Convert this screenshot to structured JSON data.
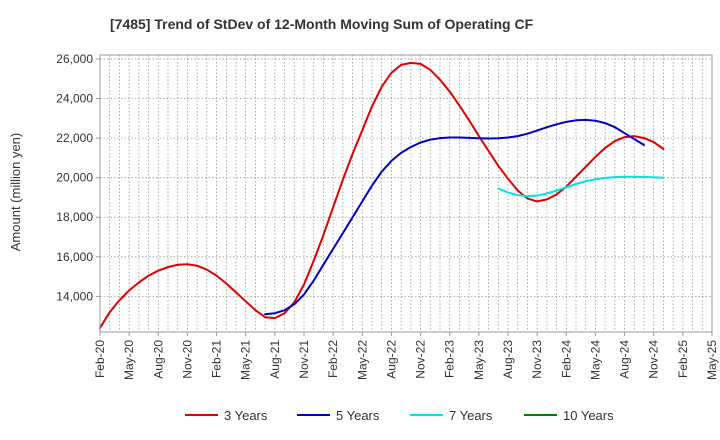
{
  "chart_data": {
    "type": "line",
    "title": "[7485]  Trend of StDev of 12-Month Moving Sum of Operating CF",
    "xlabel": "",
    "ylabel": "Amount (million yen)",
    "ylim": [
      12200,
      26200
    ],
    "xlim": [
      "2020-02",
      "2025-05"
    ],
    "yticks": [
      14000,
      16000,
      18000,
      20000,
      22000,
      24000,
      26000
    ],
    "ytick_labels": [
      "14,000",
      "16,000",
      "18,000",
      "20,000",
      "22,000",
      "24,000",
      "26,000"
    ],
    "xtick_labels": [
      "Feb-20",
      "May-20",
      "Aug-20",
      "Nov-20",
      "Feb-21",
      "May-21",
      "Aug-21",
      "Nov-21",
      "Feb-22",
      "May-22",
      "Aug-22",
      "Nov-22",
      "Feb-23",
      "May-23",
      "Aug-23",
      "Nov-23",
      "Feb-24",
      "May-24",
      "Aug-24",
      "Nov-24",
      "Feb-25",
      "May-25"
    ],
    "grid": true,
    "legend_position": "bottom",
    "series": [
      {
        "name": "3 Years",
        "color": "#e00000",
        "points": [
          [
            "2020-02",
            12400
          ],
          [
            "2020-03",
            13200
          ],
          [
            "2020-04",
            13800
          ],
          [
            "2020-05",
            14300
          ],
          [
            "2020-06",
            14700
          ],
          [
            "2020-07",
            15050
          ],
          [
            "2020-08",
            15300
          ],
          [
            "2020-09",
            15480
          ],
          [
            "2020-10",
            15600
          ],
          [
            "2020-11",
            15620
          ],
          [
            "2020-12",
            15550
          ],
          [
            "2021-01",
            15350
          ],
          [
            "2021-02",
            15050
          ],
          [
            "2021-03",
            14650
          ],
          [
            "2021-04",
            14200
          ],
          [
            "2021-05",
            13750
          ],
          [
            "2021-06",
            13300
          ],
          [
            "2021-07",
            12950
          ],
          [
            "2021-08",
            12900
          ],
          [
            "2021-09",
            13150
          ],
          [
            "2021-10",
            13700
          ],
          [
            "2021-11",
            14600
          ],
          [
            "2021-12",
            15800
          ],
          [
            "2022-01",
            17100
          ],
          [
            "2022-02",
            18500
          ],
          [
            "2022-03",
            19900
          ],
          [
            "2022-04",
            21200
          ],
          [
            "2022-05",
            22400
          ],
          [
            "2022-06",
            23600
          ],
          [
            "2022-07",
            24600
          ],
          [
            "2022-08",
            25300
          ],
          [
            "2022-09",
            25700
          ],
          [
            "2022-10",
            25800
          ],
          [
            "2022-11",
            25750
          ],
          [
            "2022-12",
            25450
          ],
          [
            "2023-01",
            24950
          ],
          [
            "2023-02",
            24350
          ],
          [
            "2023-03",
            23650
          ],
          [
            "2023-04",
            22900
          ],
          [
            "2023-05",
            22100
          ],
          [
            "2023-06",
            21350
          ],
          [
            "2023-07",
            20600
          ],
          [
            "2023-08",
            19950
          ],
          [
            "2023-09",
            19350
          ],
          [
            "2023-10",
            18950
          ],
          [
            "2023-11",
            18800
          ],
          [
            "2023-12",
            18900
          ],
          [
            "2024-01",
            19150
          ],
          [
            "2024-02",
            19550
          ],
          [
            "2024-03",
            20050
          ],
          [
            "2024-04",
            20550
          ],
          [
            "2024-05",
            21050
          ],
          [
            "2024-06",
            21500
          ],
          [
            "2024-07",
            21850
          ],
          [
            "2024-08",
            22050
          ],
          [
            "2024-09",
            22100
          ],
          [
            "2024-10",
            22000
          ],
          [
            "2024-11",
            21800
          ],
          [
            "2024-12",
            21450
          ]
        ]
      },
      {
        "name": "5 Years",
        "color": "#0000cc",
        "points": [
          [
            "2021-07",
            13100
          ],
          [
            "2021-08",
            13150
          ],
          [
            "2021-09",
            13300
          ],
          [
            "2021-10",
            13600
          ],
          [
            "2021-11",
            14100
          ],
          [
            "2021-12",
            14800
          ],
          [
            "2022-01",
            15600
          ],
          [
            "2022-02",
            16400
          ],
          [
            "2022-03",
            17200
          ],
          [
            "2022-04",
            18000
          ],
          [
            "2022-05",
            18800
          ],
          [
            "2022-06",
            19600
          ],
          [
            "2022-07",
            20300
          ],
          [
            "2022-08",
            20850
          ],
          [
            "2022-09",
            21250
          ],
          [
            "2022-10",
            21550
          ],
          [
            "2022-11",
            21780
          ],
          [
            "2022-12",
            21920
          ],
          [
            "2023-01",
            22000
          ],
          [
            "2023-02",
            22030
          ],
          [
            "2023-03",
            22030
          ],
          [
            "2023-04",
            22010
          ],
          [
            "2023-05",
            21990
          ],
          [
            "2023-06",
            21980
          ],
          [
            "2023-07",
            21990
          ],
          [
            "2023-08",
            22030
          ],
          [
            "2023-09",
            22100
          ],
          [
            "2023-10",
            22220
          ],
          [
            "2023-11",
            22380
          ],
          [
            "2023-12",
            22550
          ],
          [
            "2024-01",
            22700
          ],
          [
            "2024-02",
            22820
          ],
          [
            "2024-03",
            22900
          ],
          [
            "2024-04",
            22920
          ],
          [
            "2024-05",
            22880
          ],
          [
            "2024-06",
            22760
          ],
          [
            "2024-07",
            22550
          ],
          [
            "2024-08",
            22250
          ],
          [
            "2024-09",
            21950
          ],
          [
            "2024-10",
            21650
          ]
        ]
      },
      {
        "name": "7 Years",
        "color": "#00e5e5",
        "points": [
          [
            "2023-07",
            19450
          ],
          [
            "2023-08",
            19250
          ],
          [
            "2023-09",
            19120
          ],
          [
            "2023-10",
            19070
          ],
          [
            "2023-11",
            19100
          ],
          [
            "2023-12",
            19200
          ],
          [
            "2024-01",
            19350
          ],
          [
            "2024-02",
            19520
          ],
          [
            "2024-03",
            19680
          ],
          [
            "2024-04",
            19820
          ],
          [
            "2024-05",
            19920
          ],
          [
            "2024-06",
            19990
          ],
          [
            "2024-07",
            20030
          ],
          [
            "2024-08",
            20050
          ],
          [
            "2024-09",
            20050
          ],
          [
            "2024-10",
            20040
          ],
          [
            "2024-11",
            20020
          ],
          [
            "2024-12",
            20000
          ]
        ]
      },
      {
        "name": "10 Years",
        "color": "#008000",
        "points": []
      }
    ]
  }
}
